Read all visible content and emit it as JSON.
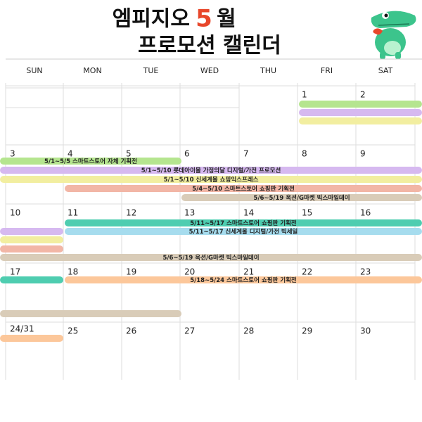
{
  "title": {
    "brand": "엠피지오",
    "month": "5",
    "suffix": "월",
    "subtitle": "프로모션 캘린더"
  },
  "weekdays": [
    "SUN",
    "MON",
    "TUE",
    "WED",
    "THU",
    "FRI",
    "SAT"
  ],
  "weeks": [
    [
      null,
      null,
      null,
      null,
      null,
      "1",
      "2"
    ],
    [
      "3",
      "4",
      "5",
      "6",
      "7",
      "8",
      "9"
    ],
    [
      "10",
      "11",
      "12",
      "13",
      "14",
      "15",
      "16"
    ],
    [
      "17",
      "18",
      "19",
      "20",
      "21",
      "22",
      "23"
    ],
    [
      "24/31",
      "25",
      "26",
      "27",
      "28",
      "29",
      "30"
    ]
  ],
  "events": [
    "5/1~5/5 스마트스토어 자체 기획전",
    "5/1~5/10 롯데아이몰 가정의달 디지털/가전 프로모션",
    "5/1~5/10 신세계몰 쇼핑익스프레스",
    "5/4~5/10 스마트스토어 쇼핑판 기획전",
    "5/6~5/19 옥션/G마켓 빅스마일데이",
    "5/11~5/17 스마트스토어 쇼핑판 기획전",
    "5/11~5/17 신세계몰 디지털/가전 빅세일",
    "5/6~5/19 옥션/G마켓 빅스마일데이",
    "5/18~5/24 스마트스토어 쇼핑판 기획전"
  ]
}
